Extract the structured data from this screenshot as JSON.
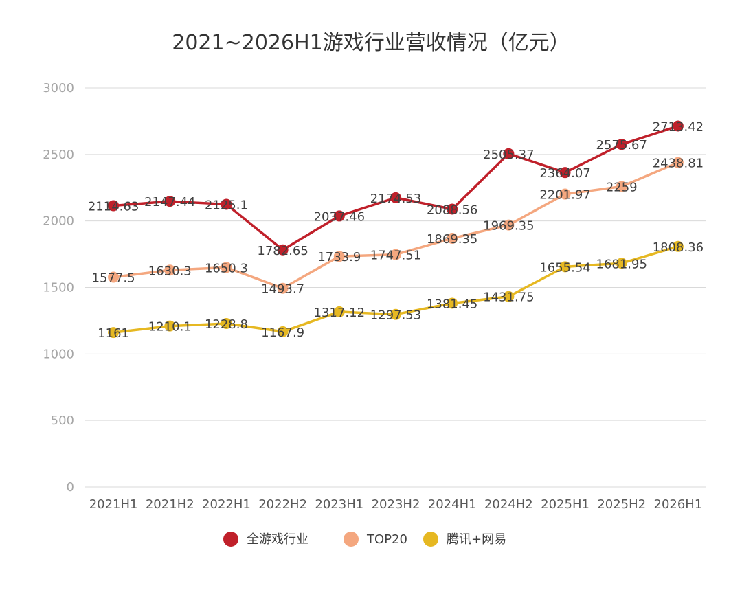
{
  "chart_data": {
    "type": "line",
    "title": "2021~2026H1游戏行业营收情况（亿元）",
    "xlabel": "",
    "ylabel": "",
    "ylim": [
      0,
      3000
    ],
    "yticks": [
      0,
      500,
      1000,
      1500,
      2000,
      2500,
      3000
    ],
    "grid": true,
    "legend_position": "bottom",
    "categories": [
      "2021H1",
      "2021H2",
      "2022H1",
      "2022H2",
      "2023H1",
      "2023H2",
      "2024H1",
      "2024H2",
      "2025H1",
      "2025H2",
      "2026H1"
    ],
    "series": [
      {
        "name": "全游戏行业",
        "color": "#c0202a",
        "values": [
          2114.63,
          2147.44,
          2125.1,
          1782.65,
          2037.46,
          2174.53,
          2088.56,
          2505.37,
          2364.07,
          2575.67,
          2713.42
        ],
        "labels": [
          "2114.63",
          "2147.44",
          "2125.1",
          "1782.65",
          "2037.46",
          "2174.53",
          "2088.56",
          "2505.37",
          "2364.07",
          "2575.67",
          "2713.42"
        ]
      },
      {
        "name": "TOP20",
        "color": "#f4a77f",
        "values": [
          1577.5,
          1630.3,
          1650.3,
          1493.7,
          1733.9,
          1747.51,
          1869.35,
          1969.35,
          2201.97,
          2259,
          2438.81
        ],
        "labels": [
          "1577.5",
          "1630.3",
          "1650.3",
          "1493.7",
          "1733.9",
          "1747.51",
          "1869.35",
          "1969.35",
          "2201.97",
          "2259",
          "2438.81"
        ]
      },
      {
        "name": "腾讯+网易",
        "color": "#e6b822",
        "values": [
          1161,
          1210.1,
          1228.8,
          1167.9,
          1317.12,
          1297.53,
          1381.45,
          1431.75,
          1655.54,
          1681.95,
          1808.36
        ],
        "labels": [
          "1161",
          "1210.1",
          "1228.8",
          "1167.9",
          "1317.12",
          "1297.53",
          "1381.45",
          "1431.75",
          "1655.54",
          "1681.95",
          "1808.36"
        ]
      }
    ]
  }
}
